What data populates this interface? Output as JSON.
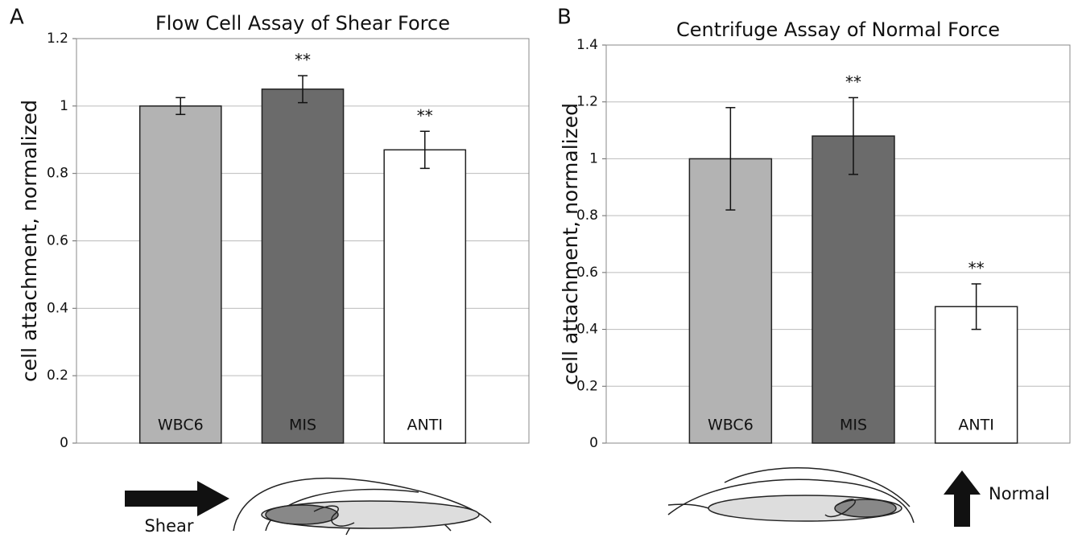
{
  "chart_data": [
    {
      "type": "bar",
      "panel": "A",
      "title": "Flow Cell Assay of Shear Force",
      "y_label": "cell attachment, normalized",
      "categories": [
        "WBC6",
        "MIS",
        "ANTI"
      ],
      "values": [
        1.0,
        1.05,
        0.87
      ],
      "errors": [
        0.025,
        0.04,
        0.055
      ],
      "colors": [
        "#b3b3b3",
        "#6b6b6b",
        "#ffffff"
      ],
      "annotations": [
        {
          "category": "MIS",
          "text": "**"
        },
        {
          "category": "ANTI",
          "text": "**"
        }
      ],
      "ylim": [
        0,
        1.2
      ],
      "yticks": [
        0,
        0.2,
        0.4,
        0.6,
        0.8,
        1,
        1.2
      ],
      "grid": true,
      "illustration_label": "Shear"
    },
    {
      "type": "bar",
      "panel": "B",
      "title": "Centrifuge Assay of Normal Force",
      "y_label": "cell attachment, normalized",
      "categories": [
        "WBC6",
        "MIS",
        "ANTI"
      ],
      "values": [
        1.0,
        1.08,
        0.48
      ],
      "errors": [
        0.18,
        0.135,
        0.08
      ],
      "colors": [
        "#b3b3b3",
        "#6b6b6b",
        "#ffffff"
      ],
      "annotations": [
        {
          "category": "MIS",
          "text": "**"
        },
        {
          "category": "ANTI",
          "text": "**"
        }
      ],
      "ylim": [
        0,
        1.4
      ],
      "yticks": [
        0,
        0.2,
        0.4,
        0.6,
        0.8,
        1,
        1.2,
        1.4
      ],
      "grid": true,
      "illustration_label": "Normal"
    }
  ]
}
